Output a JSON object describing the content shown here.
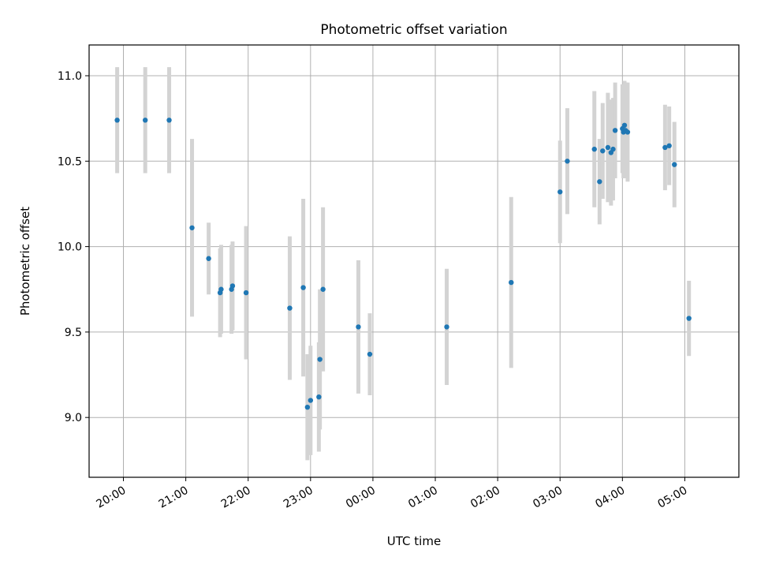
{
  "chart_data": {
    "type": "scatter",
    "title": "Photometric offset variation",
    "xlabel": "UTC time",
    "ylabel": "Photometric offset",
    "grid": true,
    "x_unit": "UTC time (day of start, evening through next morning)",
    "xlim": [
      "19:27",
      "05:52"
    ],
    "ylim": [
      8.65,
      11.18
    ],
    "xticks": [
      "20:00",
      "21:00",
      "22:00",
      "23:00",
      "00:00",
      "01:00",
      "02:00",
      "03:00",
      "04:00",
      "05:00"
    ],
    "yticks": [
      "9.0",
      "9.5",
      "10.0",
      "10.5",
      "11.0"
    ],
    "colors": {
      "point": "#1f77b4",
      "errorbar": "#d3d3d3",
      "grid": "#b0b0b0"
    },
    "points": [
      {
        "t": "19:54",
        "y": 10.74,
        "err": 0.31
      },
      {
        "t": "20:21",
        "y": 10.74,
        "err": 0.31
      },
      {
        "t": "20:44",
        "y": 10.74,
        "err": 0.31
      },
      {
        "t": "21:06",
        "y": 10.11,
        "err": 0.52
      },
      {
        "t": "21:22",
        "y": 9.93,
        "err": 0.21
      },
      {
        "t": "21:33",
        "y": 9.73,
        "err": 0.26
      },
      {
        "t": "21:34",
        "y": 9.75,
        "err": 0.26
      },
      {
        "t": "21:44",
        "y": 9.75,
        "err": 0.26
      },
      {
        "t": "21:45",
        "y": 9.77,
        "err": 0.26
      },
      {
        "t": "21:58",
        "y": 9.73,
        "err": 0.39
      },
      {
        "t": "22:40",
        "y": 9.64,
        "err": 0.42
      },
      {
        "t": "22:53",
        "y": 9.76,
        "err": 0.52
      },
      {
        "t": "22:57",
        "y": 9.06,
        "err": 0.31
      },
      {
        "t": "23:00",
        "y": 9.1,
        "err": 0.32
      },
      {
        "t": "23:08",
        "y": 9.12,
        "err": 0.32
      },
      {
        "t": "23:09",
        "y": 9.34,
        "err": 0.41
      },
      {
        "t": "23:12",
        "y": 9.75,
        "err": 0.48
      },
      {
        "t": "23:46",
        "y": 9.53,
        "err": 0.39
      },
      {
        "t": "23:57",
        "y": 9.37,
        "err": 0.24
      },
      {
        "t": "01:11",
        "y": 9.53,
        "err": 0.34
      },
      {
        "t": "02:13",
        "y": 9.79,
        "err": 0.5
      },
      {
        "t": "03:00",
        "y": 10.32,
        "err": 0.3
      },
      {
        "t": "03:07",
        "y": 10.5,
        "err": 0.31
      },
      {
        "t": "03:33",
        "y": 10.57,
        "err": 0.34
      },
      {
        "t": "03:38",
        "y": 10.38,
        "err": 0.25
      },
      {
        "t": "03:41",
        "y": 10.56,
        "err": 0.28
      },
      {
        "t": "03:46",
        "y": 10.58,
        "err": 0.32
      },
      {
        "t": "03:49",
        "y": 10.55,
        "err": 0.31
      },
      {
        "t": "03:51",
        "y": 10.57,
        "err": 0.3
      },
      {
        "t": "03:53",
        "y": 10.68,
        "err": 0.28
      },
      {
        "t": "04:00",
        "y": 10.69,
        "err": 0.26
      },
      {
        "t": "04:01",
        "y": 10.67,
        "err": 0.27
      },
      {
        "t": "04:02",
        "y": 10.71,
        "err": 0.26
      },
      {
        "t": "04:03",
        "y": 10.68,
        "err": 0.28
      },
      {
        "t": "04:05",
        "y": 10.67,
        "err": 0.29
      },
      {
        "t": "04:41",
        "y": 10.58,
        "err": 0.25
      },
      {
        "t": "04:45",
        "y": 10.59,
        "err": 0.23
      },
      {
        "t": "04:50",
        "y": 10.48,
        "err": 0.25
      },
      {
        "t": "05:04",
        "y": 9.58,
        "err": 0.22
      }
    ]
  }
}
